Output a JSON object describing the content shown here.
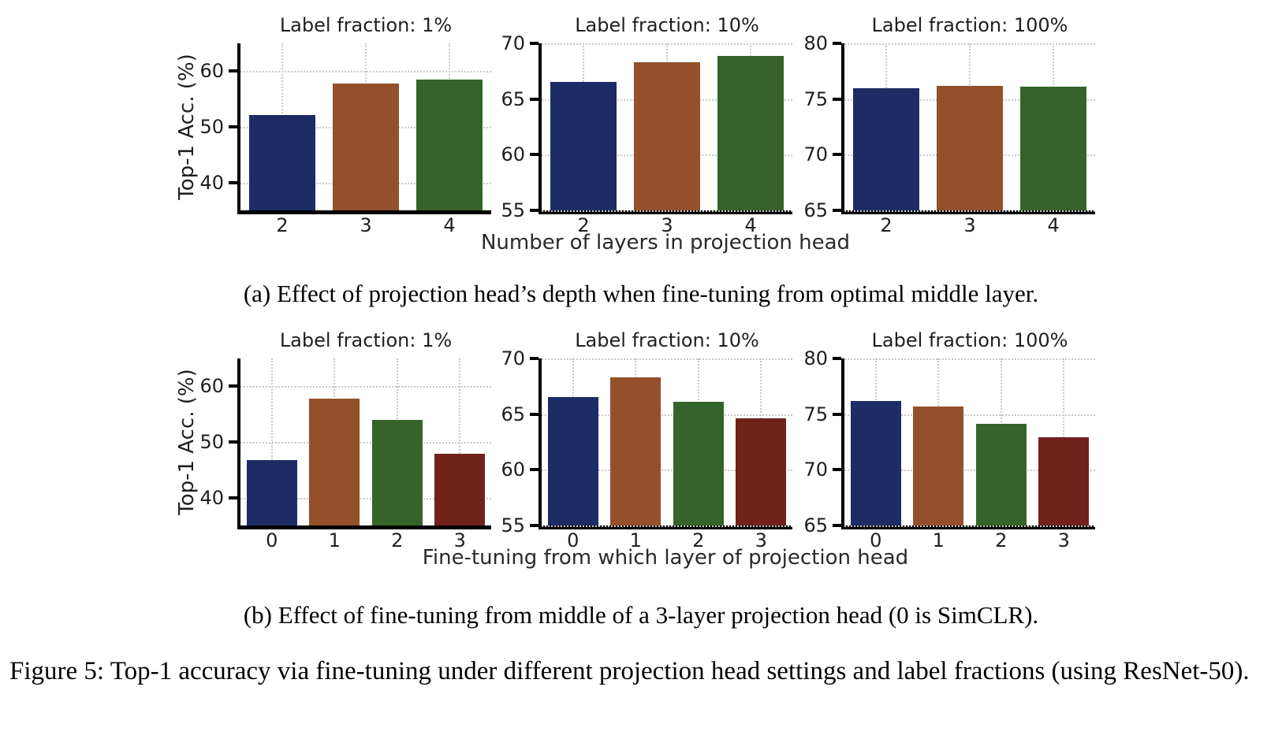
{
  "figure": {
    "ylabel": "Top-1 Acc. (%)",
    "xlabel_a": "Number of layers in projection head",
    "xlabel_b": "Fine-tuning from which layer of projection head",
    "caption_a": "(a)  Effect of projection head’s depth when fine-tuning from optimal middle layer.",
    "caption_b": "(b) Effect of fine-tuning from middle of a 3-layer projection head (0 is SimCLR).",
    "main_caption": "Figure 5:  Top-1 accuracy via fine-tuning under different projection head settings and label fractions (using ResNet-50)."
  },
  "palette": {
    "blue": "#1e2c66",
    "orange": "#94502b",
    "green": "#35632a",
    "dark_red": "#70221b",
    "grid": "#c9c9c9",
    "spine": "#000000"
  },
  "chart_data": [
    {
      "id": "a1",
      "type": "bar",
      "row": "a",
      "title": "Label fraction: 1%",
      "categories": [
        "2",
        "3",
        "4"
      ],
      "values": [
        52.1,
        57.8,
        58.5
      ],
      "colors": [
        "#1e2c66",
        "#94502b",
        "#35632a"
      ],
      "ylim": [
        35,
        65
      ],
      "yticks": [
        40,
        50,
        60
      ],
      "ylabel": "Top-1 Acc. (%)",
      "xlabel": "Number of layers in projection head",
      "grid": "dotted",
      "legend": "none"
    },
    {
      "id": "a2",
      "type": "bar",
      "row": "a",
      "title": "Label fraction: 10%",
      "categories": [
        "2",
        "3",
        "4"
      ],
      "values": [
        66.5,
        68.3,
        68.9
      ],
      "colors": [
        "#1e2c66",
        "#94502b",
        "#35632a"
      ],
      "ylim": [
        55,
        70
      ],
      "yticks": [
        55,
        60,
        65,
        70
      ],
      "ylabel": "",
      "xlabel": "Number of layers in projection head",
      "grid": "dotted",
      "legend": "none"
    },
    {
      "id": "a3",
      "type": "bar",
      "row": "a",
      "title": "Label fraction: 100%",
      "categories": [
        "2",
        "3",
        "4"
      ],
      "values": [
        76.0,
        76.2,
        76.1
      ],
      "colors": [
        "#1e2c66",
        "#94502b",
        "#35632a"
      ],
      "ylim": [
        65,
        80
      ],
      "yticks": [
        65,
        70,
        75,
        80
      ],
      "ylabel": "",
      "xlabel": "Number of layers in projection head",
      "grid": "dotted",
      "legend": "none"
    },
    {
      "id": "b1",
      "type": "bar",
      "row": "b",
      "title": "Label fraction: 1%",
      "categories": [
        "0",
        "1",
        "2",
        "3"
      ],
      "values": [
        46.8,
        57.8,
        53.9,
        47.9
      ],
      "colors": [
        "#1e2c66",
        "#94502b",
        "#35632a",
        "#70221b"
      ],
      "ylim": [
        35,
        65
      ],
      "yticks": [
        40,
        50,
        60
      ],
      "ylabel": "Top-1 Acc. (%)",
      "xlabel": "Fine-tuning from which layer of projection head",
      "grid": "dotted",
      "legend": "none"
    },
    {
      "id": "b2",
      "type": "bar",
      "row": "b",
      "title": "Label fraction: 10%",
      "categories": [
        "0",
        "1",
        "2",
        "3"
      ],
      "values": [
        66.5,
        68.3,
        66.1,
        64.6
      ],
      "colors": [
        "#1e2c66",
        "#94502b",
        "#35632a",
        "#70221b"
      ],
      "ylim": [
        55,
        70
      ],
      "yticks": [
        55,
        60,
        65,
        70
      ],
      "ylabel": "",
      "xlabel": "Fine-tuning from which layer of projection head",
      "grid": "dotted",
      "legend": "none"
    },
    {
      "id": "b3",
      "type": "bar",
      "row": "b",
      "title": "Label fraction: 100%",
      "categories": [
        "0",
        "1",
        "2",
        "3"
      ],
      "values": [
        76.2,
        75.7,
        74.1,
        72.9
      ],
      "colors": [
        "#1e2c66",
        "#94502b",
        "#35632a",
        "#70221b"
      ],
      "ylim": [
        65,
        80
      ],
      "yticks": [
        65,
        70,
        75,
        80
      ],
      "ylabel": "",
      "xlabel": "Fine-tuning from which layer of projection head",
      "grid": "dotted",
      "legend": "none"
    }
  ]
}
